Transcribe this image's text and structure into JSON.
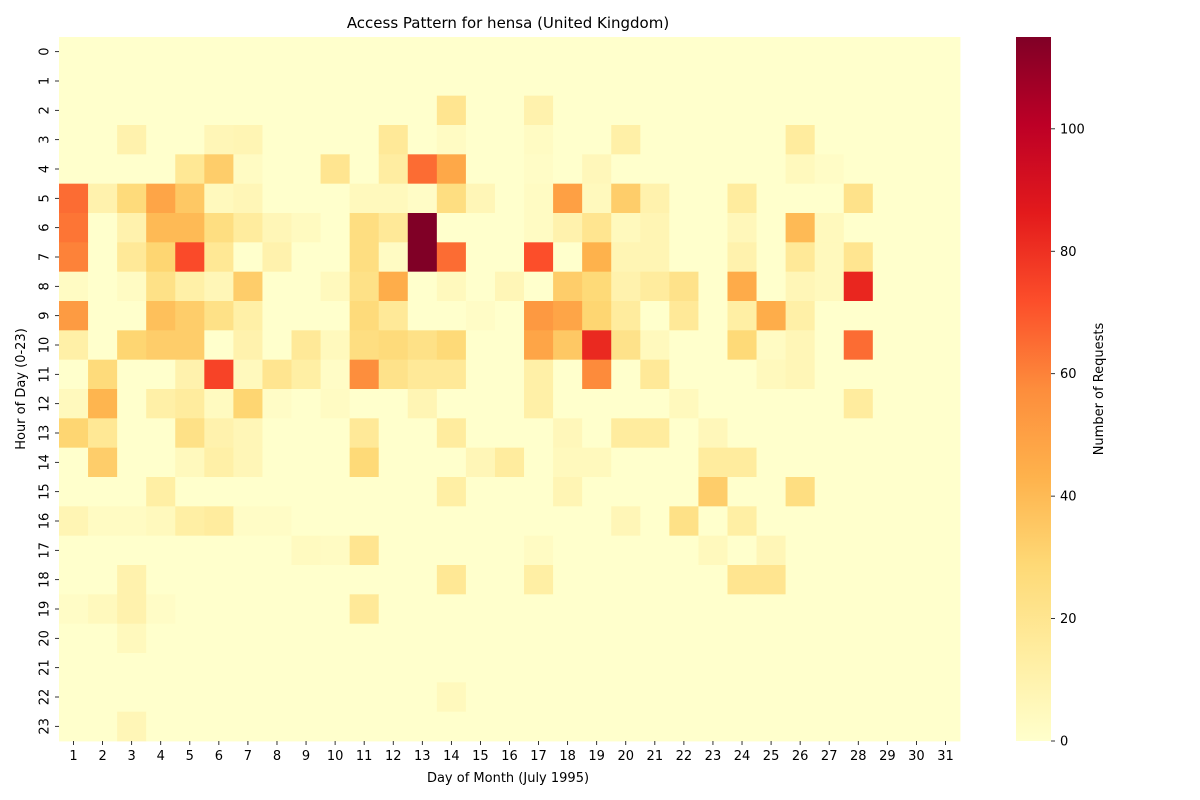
{
  "chart_data": {
    "type": "heatmap",
    "title": "Access Pattern for hensa (United Kingdom)",
    "xlabel": "Day of Month (July 1995)",
    "ylabel": "Hour of Day (0-23)",
    "x_categories": [
      "1",
      "2",
      "3",
      "4",
      "5",
      "6",
      "7",
      "8",
      "9",
      "10",
      "11",
      "12",
      "13",
      "14",
      "15",
      "16",
      "17",
      "18",
      "19",
      "20",
      "21",
      "22",
      "23",
      "24",
      "25",
      "26",
      "27",
      "28",
      "29",
      "30",
      "31"
    ],
    "y_categories": [
      "0",
      "1",
      "2",
      "3",
      "4",
      "5",
      "6",
      "7",
      "8",
      "9",
      "10",
      "11",
      "12",
      "13",
      "14",
      "15",
      "16",
      "17",
      "18",
      "19",
      "20",
      "21",
      "22",
      "23"
    ],
    "values": [
      [
        0,
        0,
        0,
        0,
        0,
        0,
        0,
        0,
        0,
        0,
        0,
        0,
        0,
        0,
        0,
        0,
        0,
        0,
        0,
        0,
        0,
        0,
        0,
        0,
        0,
        0,
        0,
        0,
        0,
        0,
        0
      ],
      [
        0,
        0,
        0,
        0,
        0,
        0,
        0,
        0,
        0,
        0,
        0,
        0,
        0,
        0,
        0,
        0,
        0,
        0,
        0,
        0,
        0,
        0,
        0,
        0,
        0,
        0,
        0,
        0,
        0,
        0,
        0
      ],
      [
        0,
        0,
        0,
        0,
        0,
        0,
        0,
        0,
        0,
        0,
        0,
        0,
        0,
        20,
        0,
        0,
        10,
        0,
        0,
        0,
        0,
        0,
        0,
        0,
        0,
        0,
        0,
        0,
        0,
        0,
        0
      ],
      [
        0,
        0,
        10,
        0,
        0,
        7,
        8,
        0,
        0,
        0,
        0,
        17,
        0,
        3,
        0,
        0,
        3,
        0,
        0,
        12,
        0,
        0,
        0,
        0,
        0,
        15,
        0,
        0,
        0,
        0,
        0
      ],
      [
        0,
        0,
        0,
        0,
        18,
        33,
        3,
        0,
        0,
        20,
        0,
        14,
        65,
        47,
        0,
        0,
        2,
        0,
        6,
        0,
        0,
        0,
        0,
        0,
        0,
        5,
        2,
        0,
        0,
        0,
        0
      ],
      [
        65,
        10,
        27,
        48,
        35,
        5,
        7,
        0,
        0,
        0,
        5,
        5,
        2,
        25,
        7,
        0,
        3,
        50,
        5,
        33,
        10,
        0,
        0,
        15,
        0,
        0,
        0,
        22,
        0,
        0,
        0
      ],
      [
        63,
        0,
        10,
        40,
        40,
        25,
        15,
        7,
        4,
        0,
        25,
        17,
        115,
        0,
        0,
        0,
        3,
        10,
        20,
        5,
        8,
        0,
        0,
        6,
        0,
        40,
        5,
        0,
        0,
        0,
        0
      ],
      [
        60,
        0,
        17,
        30,
        73,
        18,
        0,
        10,
        0,
        0,
        25,
        3,
        115,
        65,
        0,
        0,
        72,
        0,
        43,
        8,
        8,
        0,
        0,
        10,
        0,
        17,
        5,
        20,
        0,
        0,
        0
      ],
      [
        3,
        0,
        3,
        23,
        12,
        7,
        33,
        0,
        0,
        5,
        23,
        45,
        0,
        5,
        0,
        7,
        0,
        33,
        28,
        10,
        15,
        22,
        0,
        46,
        0,
        7,
        5,
        83,
        0,
        0,
        0
      ],
      [
        52,
        0,
        0,
        38,
        33,
        23,
        12,
        0,
        0,
        0,
        27,
        17,
        0,
        0,
        2,
        0,
        53,
        48,
        30,
        15,
        0,
        17,
        0,
        13,
        45,
        12,
        0,
        0,
        0,
        0,
        0
      ],
      [
        12,
        0,
        30,
        33,
        33,
        0,
        10,
        0,
        17,
        5,
        25,
        27,
        23,
        28,
        0,
        0,
        48,
        35,
        82,
        22,
        5,
        0,
        0,
        28,
        3,
        7,
        0,
        65,
        0,
        0,
        0
      ],
      [
        0,
        27,
        0,
        0,
        10,
        75,
        5,
        20,
        13,
        2,
        57,
        22,
        17,
        17,
        0,
        0,
        12,
        0,
        58,
        0,
        17,
        0,
        0,
        0,
        5,
        7,
        0,
        0,
        0,
        0,
        0
      ],
      [
        5,
        42,
        0,
        12,
        15,
        4,
        30,
        2,
        0,
        3,
        0,
        0,
        8,
        0,
        0,
        0,
        12,
        0,
        0,
        0,
        0,
        5,
        0,
        0,
        0,
        0,
        0,
        15,
        0,
        0,
        0
      ],
      [
        30,
        18,
        0,
        0,
        23,
        10,
        7,
        0,
        0,
        0,
        17,
        0,
        0,
        15,
        0,
        0,
        0,
        6,
        0,
        15,
        15,
        0,
        6,
        0,
        0,
        0,
        0,
        0,
        0,
        0,
        0
      ],
      [
        0,
        33,
        0,
        0,
        5,
        12,
        7,
        0,
        0,
        0,
        28,
        0,
        0,
        0,
        7,
        15,
        0,
        5,
        5,
        0,
        0,
        0,
        15,
        15,
        0,
        0,
        0,
        0,
        0,
        0,
        0
      ],
      [
        0,
        0,
        0,
        13,
        0,
        0,
        0,
        0,
        0,
        0,
        0,
        0,
        0,
        13,
        0,
        0,
        0,
        8,
        0,
        0,
        0,
        0,
        33,
        0,
        0,
        25,
        0,
        0,
        0,
        0,
        0
      ],
      [
        8,
        3,
        3,
        5,
        13,
        15,
        2,
        2,
        0,
        0,
        0,
        0,
        0,
        0,
        0,
        0,
        0,
        0,
        0,
        7,
        0,
        23,
        0,
        13,
        0,
        0,
        0,
        0,
        0,
        0,
        0
      ],
      [
        0,
        0,
        0,
        0,
        0,
        0,
        0,
        0,
        4,
        3,
        20,
        0,
        0,
        0,
        0,
        0,
        3,
        0,
        0,
        0,
        0,
        0,
        5,
        0,
        7,
        0,
        0,
        0,
        0,
        0,
        0
      ],
      [
        0,
        0,
        10,
        0,
        0,
        0,
        0,
        0,
        0,
        0,
        0,
        0,
        0,
        18,
        0,
        0,
        13,
        0,
        0,
        0,
        0,
        0,
        0,
        20,
        20,
        0,
        0,
        0,
        0,
        0,
        0
      ],
      [
        2,
        5,
        10,
        2,
        0,
        0,
        0,
        0,
        0,
        0,
        17,
        0,
        0,
        0,
        0,
        0,
        0,
        0,
        0,
        0,
        0,
        0,
        0,
        0,
        0,
        0,
        0,
        0,
        0,
        0,
        0
      ],
      [
        0,
        0,
        5,
        0,
        0,
        0,
        0,
        0,
        0,
        0,
        0,
        0,
        0,
        0,
        0,
        0,
        0,
        0,
        0,
        0,
        0,
        0,
        0,
        0,
        0,
        0,
        0,
        0,
        0,
        0,
        0
      ],
      [
        0,
        0,
        0,
        0,
        0,
        0,
        0,
        0,
        0,
        0,
        0,
        0,
        0,
        0,
        0,
        0,
        0,
        0,
        0,
        0,
        0,
        0,
        0,
        0,
        0,
        0,
        0,
        0,
        0,
        0,
        0
      ],
      [
        0,
        0,
        0,
        0,
        0,
        0,
        0,
        0,
        0,
        0,
        0,
        0,
        0,
        5,
        0,
        0,
        0,
        0,
        0,
        0,
        0,
        0,
        0,
        0,
        0,
        0,
        0,
        0,
        0,
        0,
        0
      ],
      [
        0,
        0,
        7,
        0,
        0,
        0,
        0,
        0,
        0,
        0,
        0,
        0,
        0,
        0,
        0,
        0,
        0,
        0,
        0,
        0,
        0,
        0,
        0,
        0,
        0,
        0,
        0,
        0,
        0,
        0,
        0
      ]
    ],
    "colorbar": {
      "label": "Number of Requests",
      "range": [
        0,
        115
      ],
      "ticks": [
        0,
        20,
        40,
        60,
        80,
        100
      ],
      "colormap": "YlOrRd",
      "stops": [
        "#ffffcc",
        "#ffeda0",
        "#fed976",
        "#feb24c",
        "#fd8d3c",
        "#fc4e2a",
        "#e31a1c",
        "#bd0026",
        "#800026"
      ]
    }
  }
}
